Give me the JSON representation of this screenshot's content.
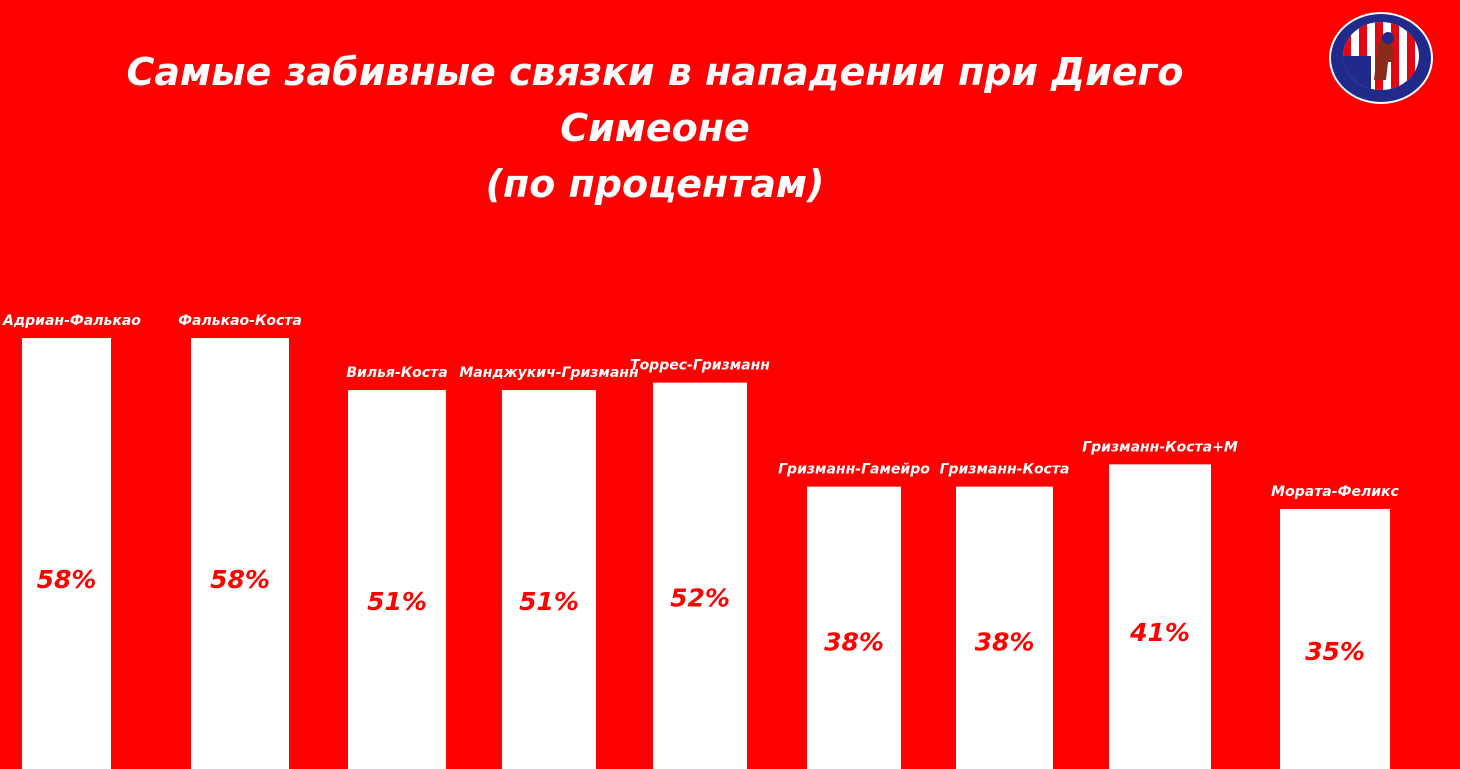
{
  "title": {
    "line1": "Самые забивные связки в нападении при Диего Симеоне",
    "line2": "(по процентам)"
  },
  "logo": {
    "icon": "atletico-madrid-crest-icon"
  },
  "colors": {
    "background": "#ff0000",
    "bar": "#ffffff",
    "value_text": "#ff0000",
    "label_text": "#ffffff"
  },
  "chart_data": {
    "type": "bar",
    "title": "Самые забивные связки в нападении при Диего Симеоне (по процентам)",
    "categories": [
      "Адриан-Фалькао",
      "Фалькао-Коста",
      "Вилья-Коста",
      "Манджукич-Гризманн",
      "Торрес-Гризманн",
      "Гризманн-Гамейро",
      "Гризманн-Коста",
      "Гризманн-Коста+М",
      "Мората-Феликс"
    ],
    "values": [
      58,
      58,
      51,
      51,
      52,
      38,
      38,
      41,
      35
    ],
    "value_labels": [
      "58%",
      "58%",
      "51%",
      "51%",
      "52%",
      "38%",
      "38%",
      "41%",
      "35%"
    ],
    "xlabel": "",
    "ylabel": "",
    "grid": false,
    "legend": "none"
  }
}
